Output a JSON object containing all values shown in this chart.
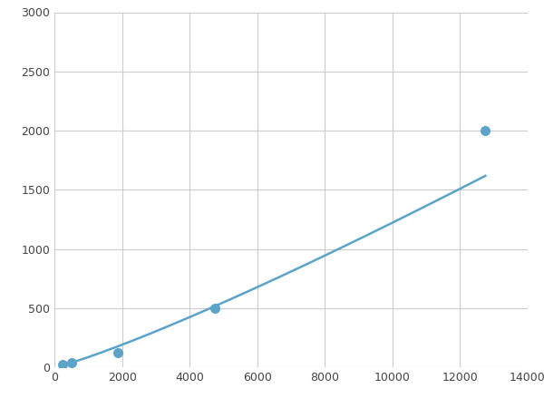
{
  "x_points": [
    250,
    500,
    1875,
    4750,
    12750
  ],
  "y_points": [
    20,
    40,
    120,
    500,
    2000
  ],
  "line_color": "#5ba3c9",
  "marker_color": "#5ba3c9",
  "marker_size": 48,
  "line_width": 1.8,
  "xlim": [
    0,
    14000
  ],
  "ylim": [
    0,
    3000
  ],
  "xticks": [
    0,
    2000,
    4000,
    6000,
    8000,
    10000,
    12000,
    14000
  ],
  "yticks": [
    0,
    500,
    1000,
    1500,
    2000,
    2500,
    3000
  ],
  "grid_color": "#cccccc",
  "background_color": "#ffffff",
  "figure_bg": "#ffffff"
}
